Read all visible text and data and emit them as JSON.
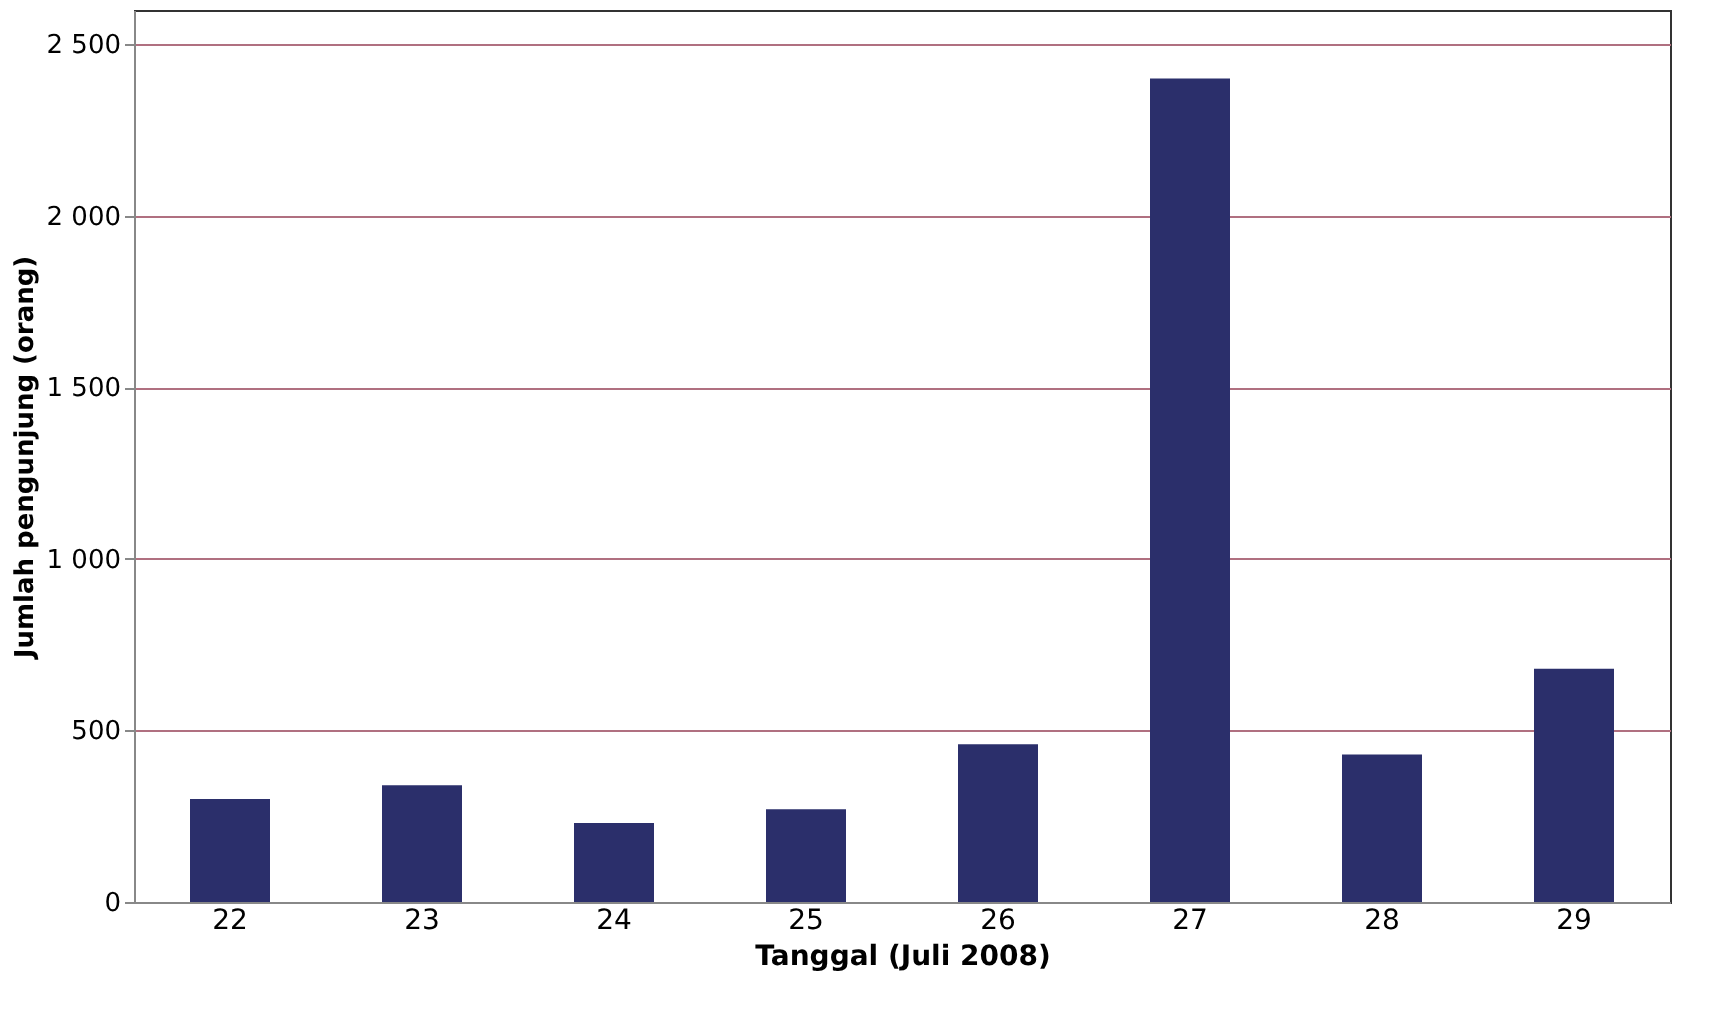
{
  "chart_data": {
    "type": "bar",
    "xlabel": "Tanggal (Juli 2008)",
    "ylabel": "Jumlah pengunjung (orang)",
    "categories": [
      "22",
      "23",
      "24",
      "25",
      "26",
      "27",
      "28",
      "29"
    ],
    "values": [
      300,
      340,
      230,
      270,
      460,
      2400,
      430,
      680
    ],
    "color": "#2b2f6b",
    "ylim": [
      0,
      2600
    ],
    "yticks": [
      0,
      500,
      {
        "value": 1000,
        "label": "1 000"
      },
      {
        "value": 1500,
        "label": "1 500"
      },
      {
        "value": 2000,
        "label": "2 000"
      },
      {
        "value": 2500,
        "label": "2 500"
      }
    ],
    "grid": "y"
  }
}
